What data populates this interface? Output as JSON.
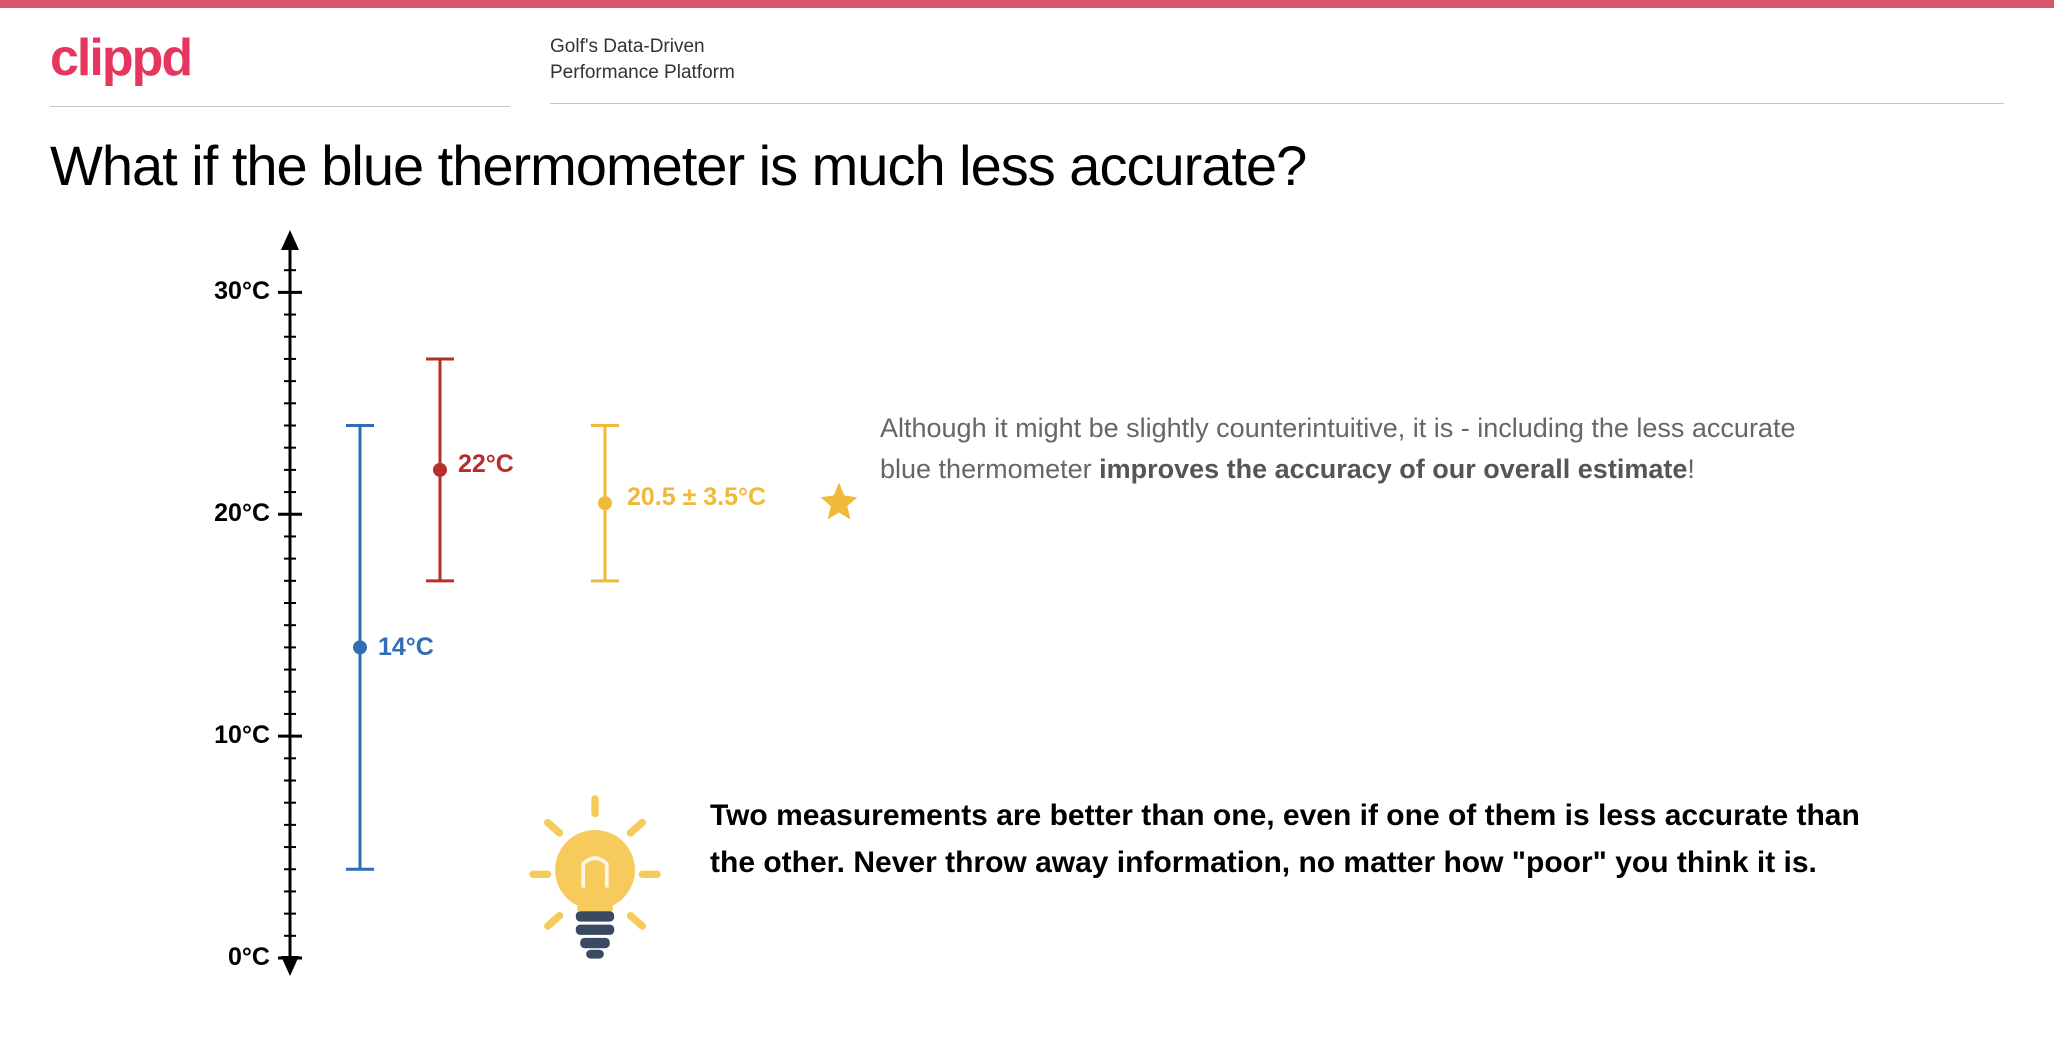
{
  "theme": {
    "topbar_color": "#d8556b",
    "brand_color": "#e6355f",
    "text_gray": "#666666"
  },
  "header": {
    "brand": "clippd",
    "tagline": "Golf's Data-Driven\nPerformance Platform"
  },
  "title": "What if the blue thermometer is much less accurate?",
  "chart": {
    "axis": {
      "min": 0,
      "max": 32,
      "tick_major_step": 10,
      "tick_minor_step": 1,
      "label_suffix": "°C",
      "labels": [
        0,
        10,
        20,
        30
      ],
      "axis_color": "#000000",
      "axis_width": 3,
      "major_tick_len": 24,
      "minor_tick_len": 12
    },
    "series": [
      {
        "id": "blue",
        "x_offset": 70,
        "value": 14,
        "err_low": 4,
        "err_high": 24,
        "color": "#2f6db5",
        "label": "14°C",
        "label_dx": 18,
        "label_dy": -4
      },
      {
        "id": "red",
        "x_offset": 150,
        "value": 22,
        "err_low": 17,
        "err_high": 27,
        "color": "#b5302a",
        "label": "22°C",
        "label_dx": 18,
        "label_dy": -10
      },
      {
        "id": "yellow",
        "x_offset": 315,
        "value": 20.5,
        "err_low": 17,
        "err_high": 24,
        "color": "#f0b93a",
        "label": "20.5 ± 3.5°C",
        "label_dx": 22,
        "label_dy": -10
      }
    ],
    "marker_radius": 7,
    "errorbar_width": 3,
    "cap_halfwidth": 14,
    "font_size": 25
  },
  "star": {
    "color": "#f0b93a",
    "size": 44
  },
  "side_note": {
    "pre": "Although it might be slightly counterintuitive, it is - including the less accurate blue thermometer ",
    "bold": "improves the accuracy of our overall estimate",
    "post": "!"
  },
  "insight": {
    "text": "Two measurements are better than one, even if one of them is less accurate than the other. Never throw away information, no matter how \"poor\" you think it is.",
    "bulb_color": "#f6cb5c",
    "bulb_base_color": "#3a4a62"
  }
}
